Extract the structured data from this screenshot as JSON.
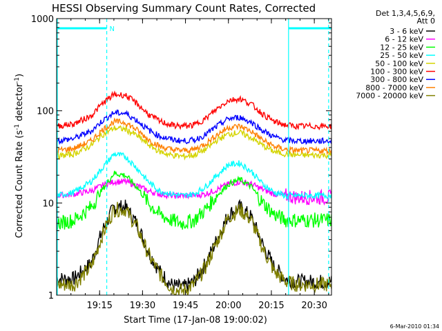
{
  "chart_data": {
    "type": "line",
    "title": "HESSI Observing Summary Count Rates, Corrected",
    "xlabel": "Start Time (17-Jan-08 19:00:02)",
    "ylabel": "Corrected Count Rate (s",
    "ylabel_sup1": "-1",
    "ylabel_mid": " detector",
    "ylabel_sup2": "-1",
    "ylabel_end": ")",
    "y_scale": "log",
    "ylim": [
      1,
      1000
    ],
    "xlim": [
      0,
      96
    ],
    "x_unit": "minutes after 19:00:02",
    "xticks": [
      {
        "x": 15,
        "label": "19:15"
      },
      {
        "x": 30,
        "label": "19:30"
      },
      {
        "x": 45,
        "label": "19:45"
      },
      {
        "x": 60,
        "label": "20:00"
      },
      {
        "x": 75,
        "label": "20:15"
      },
      {
        "x": 90,
        "label": "20:30"
      }
    ],
    "yticks": [
      {
        "y": 1,
        "label": "1"
      },
      {
        "y": 10,
        "label": "10"
      },
      {
        "y": 100,
        "label": "100"
      },
      {
        "y": 1000,
        "label": "1000"
      }
    ],
    "legend_header": [
      "Det 1,3,4,5,6,9,",
      "Att 0"
    ],
    "legend_position": "right",
    "night_bars": [
      {
        "start": 0,
        "end": 17.5,
        "label": "N"
      },
      {
        "start": 81,
        "end": 96,
        "label": ""
      }
    ],
    "vertical_lines": [
      {
        "x": 17.5,
        "style": "dashed",
        "color": "#00ffff"
      },
      {
        "x": 81,
        "style": "solid",
        "color": "#00ffff"
      },
      {
        "x": 95,
        "style": "dashed",
        "color": "#00ffff"
      }
    ],
    "x": [
      0,
      6,
      12,
      16,
      20,
      24,
      28,
      32,
      36,
      40,
      44,
      48,
      52,
      56,
      60,
      64,
      68,
      72,
      76,
      80,
      84,
      88,
      92,
      96
    ],
    "series": [
      {
        "name": "3 - 6 keV",
        "color": "#000000",
        "values": [
          1.5,
          1.5,
          2.2,
          5.0,
          9.0,
          9.0,
          6.0,
          3.0,
          1.8,
          1.3,
          1.2,
          1.4,
          2.2,
          4.0,
          7.5,
          9.0,
          7.0,
          3.5,
          2.0,
          1.5,
          1.4,
          1.4,
          1.4,
          1.4
        ]
      },
      {
        "name": "6 - 12 keV",
        "color": "#ff00ff",
        "values": [
          12,
          12.5,
          13.5,
          15.5,
          17,
          17,
          15.5,
          13.5,
          12.5,
          12,
          12,
          12,
          12.5,
          14,
          16,
          17,
          16,
          14,
          12.5,
          12,
          11.5,
          11.5,
          11.5,
          11.5
        ]
      },
      {
        "name": "12 - 25 keV",
        "color": "#00ff00",
        "values": [
          6,
          6.5,
          9,
          14,
          21,
          20,
          15,
          10,
          7.5,
          6.5,
          6,
          6.5,
          8.5,
          12,
          16,
          18,
          15,
          10,
          7.5,
          6.5,
          6.5,
          6.5,
          6.5,
          6.5
        ]
      },
      {
        "name": "25 - 50 keV",
        "color": "#00ffff",
        "values": [
          12,
          13,
          17,
          24,
          34,
          32,
          24,
          17,
          13.5,
          12.5,
          12,
          12.5,
          15,
          20,
          26,
          27,
          22,
          16,
          13,
          12,
          12,
          12,
          12,
          12
        ]
      },
      {
        "name": "50 - 100 keV",
        "color": "#d4d400",
        "values": [
          32,
          34,
          42,
          55,
          65,
          63,
          54,
          43,
          36,
          33,
          32,
          33,
          38,
          48,
          56,
          58,
          51,
          42,
          36,
          34,
          33,
          33,
          33,
          33
        ]
      },
      {
        "name": "100 - 300 keV",
        "color": "#ff0000",
        "values": [
          68,
          72,
          88,
          120,
          150,
          148,
          120,
          92,
          77,
          70,
          68,
          70,
          82,
          105,
          130,
          135,
          118,
          92,
          76,
          70,
          68,
          68,
          68,
          68
        ]
      },
      {
        "name": "300 - 800 keV",
        "color": "#0000ff",
        "values": [
          47,
          50,
          60,
          78,
          95,
          94,
          79,
          62,
          53,
          49,
          47,
          48,
          55,
          68,
          82,
          85,
          75,
          61,
          52,
          48,
          47,
          47,
          47,
          47
        ]
      },
      {
        "name": "800 - 7000 keV",
        "color": "#ff8000",
        "values": [
          37,
          39,
          47,
          62,
          76,
          75,
          62,
          49,
          41,
          38,
          37,
          38,
          44,
          55,
          66,
          68,
          60,
          48,
          41,
          38,
          37,
          37,
          37,
          37
        ]
      },
      {
        "name": "7000 - 20000 keV",
        "color": "#808000",
        "values": [
          1.3,
          1.3,
          2.0,
          4.5,
          8.5,
          8.5,
          5.5,
          2.8,
          1.7,
          1.2,
          1.1,
          1.3,
          2.0,
          3.8,
          7.0,
          8.5,
          6.5,
          3.2,
          1.8,
          1.4,
          1.3,
          1.3,
          1.3,
          1.3
        ]
      }
    ]
  },
  "footer": {
    "timestamp": "6-Mar-2010 01:34"
  }
}
